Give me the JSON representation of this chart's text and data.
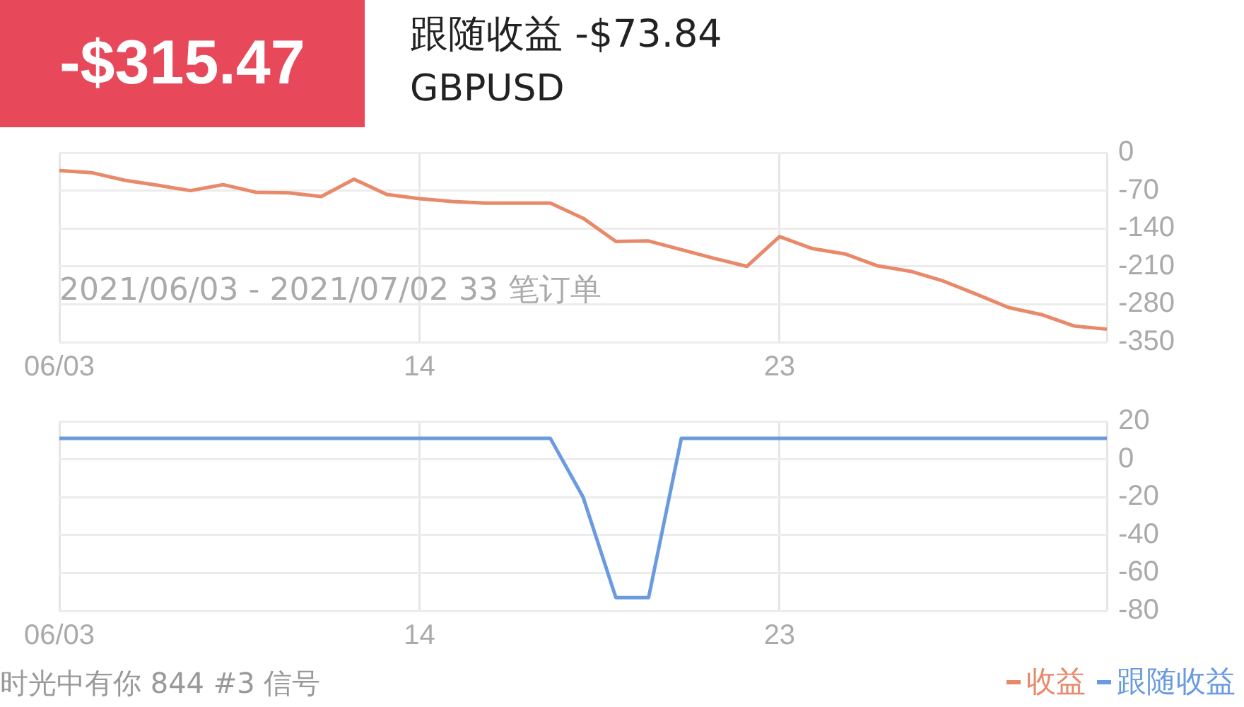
{
  "chart_data": [
    {
      "type": "line",
      "title": "-$315.47",
      "subtitle": "跟随收益 -$73.84",
      "annotations": [
        "GBPUSD",
        "2021/06/03 - 2021/07/02 33 笔订单"
      ],
      "categories": [
        "06/03",
        null,
        null,
        null,
        null,
        null,
        null,
        null,
        null,
        null,
        null,
        "14",
        null,
        null,
        null,
        null,
        null,
        null,
        null,
        null,
        null,
        null,
        "23",
        null,
        null,
        null,
        null,
        null,
        null,
        null,
        null,
        null,
        null
      ],
      "series": [
        {
          "name": "收益",
          "color": "#e8896a",
          "values": [
            -33,
            -37,
            -51,
            -60,
            -70,
            -59,
            -73,
            -74,
            -81,
            -49,
            -77,
            -85,
            -90,
            -93,
            -93,
            -93,
            -121,
            -164,
            -163,
            -179,
            -195,
            -210,
            -155,
            -177,
            -187,
            -209,
            -219,
            -237,
            -261,
            -286,
            -299,
            -320,
            -326
          ]
        }
      ],
      "ylim": [
        -350,
        0
      ],
      "yticks": [
        0,
        -70,
        -140,
        -210,
        -280,
        -350
      ],
      "grid": true,
      "legend": "bottom right",
      "marker": "none",
      "line_style": "solid"
    },
    {
      "type": "line",
      "annotations": [
        "时光中有你 844 #3 信号"
      ],
      "categories": [
        "06/03",
        null,
        null,
        null,
        null,
        null,
        null,
        null,
        null,
        null,
        null,
        "14",
        null,
        null,
        null,
        null,
        null,
        null,
        null,
        null,
        null,
        null,
        "23",
        null,
        null,
        null,
        null,
        null,
        null,
        null,
        null,
        null,
        null
      ],
      "series": [
        {
          "name": "跟随收益",
          "color": "#6a9be0",
          "values": [
            11,
            11,
            11,
            11,
            11,
            11,
            11,
            11,
            11,
            11,
            11,
            11,
            11,
            11,
            11,
            11,
            -20,
            -73,
            -73,
            11,
            11,
            11,
            11,
            11,
            11,
            11,
            11,
            11,
            11,
            11,
            11,
            11,
            11
          ]
        }
      ],
      "ylim": [
        -80,
        20
      ],
      "yticks": [
        20,
        0,
        -20,
        -40,
        -60,
        -80
      ],
      "grid": true,
      "legend": "bottom right",
      "marker": "none",
      "line_style": "solid"
    }
  ]
}
